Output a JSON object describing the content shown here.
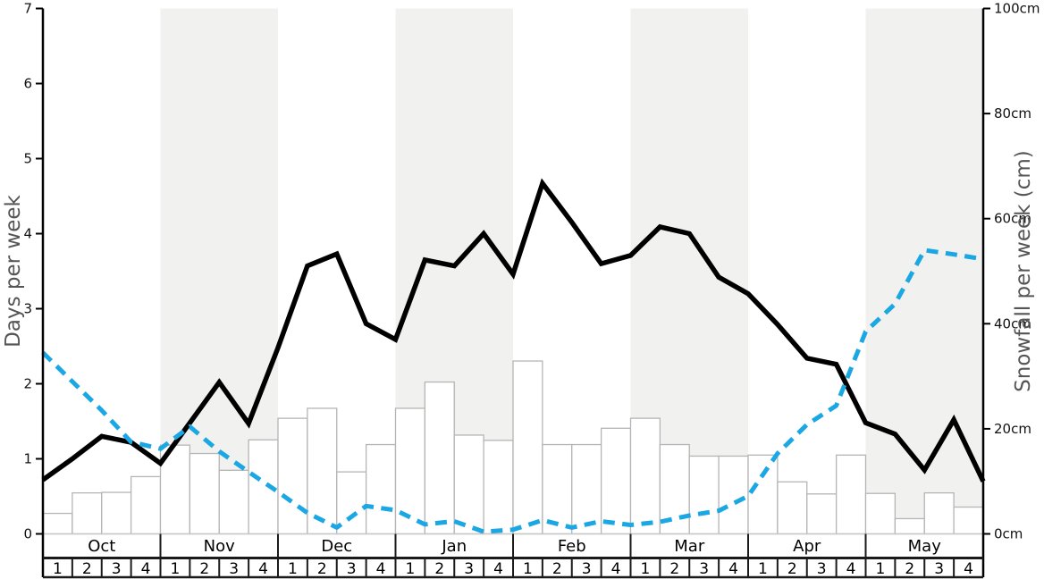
{
  "chart_data": {
    "type": "line",
    "title": "",
    "months": [
      "Oct",
      "Nov",
      "Dec",
      "Jan",
      "Feb",
      "Mar",
      "Apr",
      "May"
    ],
    "week_labels": [
      "1",
      "2",
      "3",
      "4"
    ],
    "shaded_months": [
      "Nov",
      "Jan",
      "Mar",
      "May"
    ],
    "left_axis": {
      "label": "Days per week",
      "tick_labels": [
        "0",
        "1",
        "2",
        "3",
        "4",
        "5",
        "6",
        "7"
      ],
      "tick_values": [
        0,
        1,
        2,
        3,
        4,
        5,
        6,
        7
      ],
      "range": [
        0,
        7
      ]
    },
    "right_axis": {
      "label": "Snowfall per week (cm)",
      "tick_labels": [
        "0cm",
        "20cm",
        "40cm",
        "60cm",
        "80cm",
        "100cm"
      ],
      "tick_values": [
        0,
        20,
        40,
        60,
        80,
        100
      ],
      "range": [
        0,
        100
      ]
    },
    "series": [
      {
        "name": "days-per-week-line",
        "kind": "line",
        "style": "solid",
        "axis": "left",
        "color": "#000000",
        "values": [
          0.72,
          1.0,
          1.3,
          1.22,
          0.94,
          1.48,
          2.02,
          1.47,
          2.48,
          3.57,
          3.73,
          2.8,
          2.59,
          3.65,
          3.57,
          4.0,
          3.46,
          4.67,
          4.15,
          3.6,
          3.71,
          4.09,
          4.0,
          3.42,
          3.2,
          2.79,
          2.34,
          2.26,
          1.48,
          1.33,
          0.85,
          1.52,
          0.7
        ]
      },
      {
        "name": "snowfall-line",
        "kind": "line",
        "style": "dashed",
        "axis": "right",
        "color": "#1aa7e3",
        "values": [
          34.5,
          29,
          23.5,
          17.5,
          16.2,
          20.4,
          15.7,
          11.8,
          8,
          4,
          1.2,
          5.3,
          4.5,
          1.8,
          2.4,
          0.4,
          0.8,
          2.6,
          1.2,
          2.4,
          1.7,
          2.3,
          3.5,
          4.4,
          7.2,
          15.3,
          20.8,
          24.4,
          38.5,
          43.8,
          54,
          53.2,
          52.3
        ]
      },
      {
        "name": "snowfall-bars",
        "kind": "bar",
        "axis": "right",
        "fill": "#ffffff",
        "border": "#b5b5b5",
        "values": [
          3.9,
          7.8,
          7.9,
          10.9,
          16.9,
          15.3,
          12.1,
          17.9,
          22,
          23.9,
          11.8,
          17,
          23.9,
          28.9,
          18.8,
          17.8,
          32.9,
          17,
          17,
          20.1,
          22,
          17,
          14.8,
          14.8,
          15,
          9.9,
          7.6,
          15,
          7.7,
          2.9,
          7.8,
          5.1
        ]
      }
    ],
    "colors": {
      "band": "#f1f1ef",
      "axis_title": "#555555",
      "tick_text": "#111111",
      "spine": "#000000",
      "zero_line": "#c8c8c8",
      "table_border": "#1a1a1a"
    },
    "legend": "none",
    "grid": "off"
  }
}
